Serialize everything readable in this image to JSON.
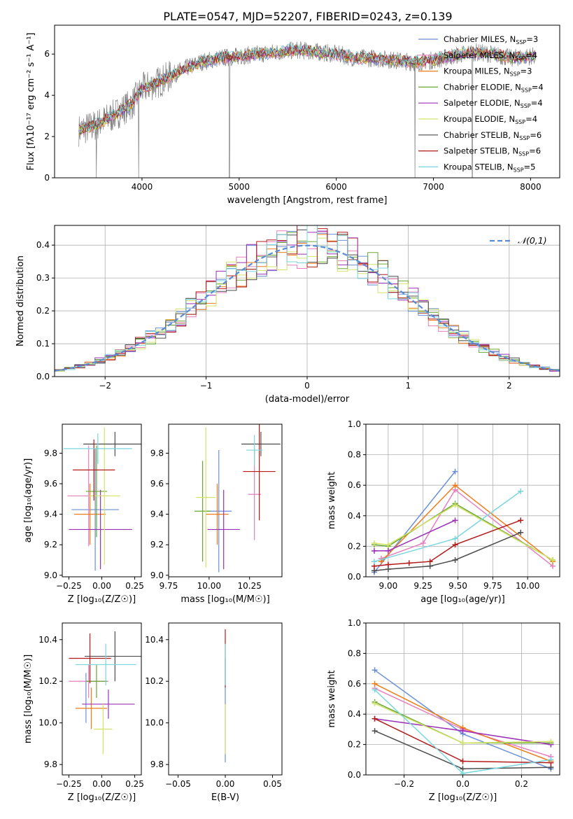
{
  "figure_title": "PLATE=0547, MJD=52207, FIBERID=0243, z=0.139",
  "colors": {
    "Chabrier MILES": "#6a8fd8",
    "Salpeter MILES": "#e87fbf",
    "Kroupa MILES": "#ef7d1a",
    "Chabrier ELODIE": "#6aa832",
    "Salpeter ELODIE": "#9b30b8",
    "Kroupa ELODIE": "#d4e36a",
    "Chabrier STELIB": "#4d4d4d",
    "Salpeter STELIB": "#b31b1b",
    "Kroupa STELIB": "#7ad6dd",
    "gaussian": "#5b8bd6"
  },
  "chart_data": [
    {
      "id": "spectrum",
      "type": "line",
      "title": "PLATE=0547, MJD=52207, FIBERID=0243, z=0.139",
      "xlabel": "wavelength [Angstrom, rest frame]",
      "ylabel": "Flux [fλ10⁻¹⁷ erg cm⁻² s⁻¹ A⁻¹]",
      "xlim": [
        3100,
        8300
      ],
      "ylim": [
        0,
        7.4
      ],
      "xticks": [
        "4000",
        "5000",
        "6000",
        "7000",
        "8000"
      ],
      "yticks": [
        "0",
        "2",
        "4",
        "6"
      ],
      "legend_position": "right",
      "legend": [
        {
          "label": "Chabrier MILES, N",
          "sub": "SSP",
          "suffix": "=3"
        },
        {
          "label": "Salpeter MILES, N",
          "sub": "SSP",
          "suffix": "=4"
        },
        {
          "label": "Kroupa MILES, N",
          "sub": "SSP",
          "suffix": "=3"
        },
        {
          "label": "Chabrier ELODIE, N",
          "sub": "SSP",
          "suffix": "=4"
        },
        {
          "label": "Salpeter ELODIE, N",
          "sub": "SSP",
          "suffix": "=4"
        },
        {
          "label": "Kroupa ELODIE, N",
          "sub": "SSP",
          "suffix": "=4"
        },
        {
          "label": "Chabrier STELIB, N",
          "sub": "SSP",
          "suffix": "=6"
        },
        {
          "label": "Salpeter STELIB, N",
          "sub": "SSP",
          "suffix": "=6"
        },
        {
          "label": "Kroupa STELIB, N",
          "sub": "SSP",
          "suffix": "=5"
        }
      ],
      "x": [
        3350,
        3500,
        3700,
        3900,
        4000,
        4200,
        4400,
        4600,
        4800,
        5000,
        5200,
        5400,
        5600,
        5800,
        6000,
        6200,
        6400,
        6600,
        6800,
        7000,
        7200,
        7400,
        7600,
        7800,
        8000
      ],
      "model_y": [
        2.3,
        2.5,
        3.0,
        3.6,
        4.3,
        4.7,
        5.2,
        5.6,
        5.8,
        5.9,
        6.0,
        6.1,
        6.2,
        6.1,
        6.0,
        5.8,
        5.8,
        5.7,
        5.6,
        5.7,
        5.9,
        6.1,
        6.0,
        5.8,
        5.9
      ],
      "dips": [
        [
          3530,
          0
        ],
        [
          3965,
          0
        ],
        [
          4900,
          0
        ],
        [
          6810,
          0
        ],
        [
          7400,
          0
        ]
      ]
    },
    {
      "id": "residual-histogram",
      "type": "area",
      "xlabel": "(data-model)/error",
      "ylabel": "Normed distribution",
      "xlim": [
        -2.5,
        2.5
      ],
      "ylim": [
        0,
        0.46
      ],
      "xticks": [
        "−2",
        "−1",
        "0",
        "1",
        "2"
      ],
      "yticks": [
        "0.0",
        "0.1",
        "0.2",
        "0.3",
        "0.4"
      ],
      "grid": true,
      "legend_position": "top-right",
      "gaussian_label": "𝒩(0,1)",
      "bin_width": 0.1
    },
    {
      "id": "age-vs-Z",
      "type": "scatter",
      "xlabel": "Z [log₁₀(Z/Z☉)]",
      "ylabel": "age  [log₁₀(age/yr)]",
      "xlim": [
        -0.3,
        0.3
      ],
      "ylim": [
        8.99,
        9.99
      ],
      "xticks": [
        "−0.25",
        "0.00",
        "0.25"
      ],
      "yticks": [
        "9.0",
        "9.2",
        "9.4",
        "9.6",
        "9.8"
      ],
      "points": [
        {
          "model": "Chabrier MILES",
          "x": -0.05,
          "xerr": 0.18,
          "y": 9.43,
          "yerr": 0.4
        },
        {
          "model": "Salpeter MILES",
          "x": -0.1,
          "xerr": 0.16,
          "y": 9.52,
          "yerr": 0.33
        },
        {
          "model": "Kroupa MILES",
          "x": -0.09,
          "xerr": 0.12,
          "y": 9.4,
          "yerr": 0.2
        },
        {
          "model": "Chabrier ELODIE",
          "x": -0.04,
          "xerr": 0.08,
          "y": 9.55,
          "yerr": 0.3
        },
        {
          "model": "Salpeter ELODIE",
          "x": -0.01,
          "xerr": 0.24,
          "y": 9.3,
          "yerr": 0.26
        },
        {
          "model": "Kroupa ELODIE",
          "x": 0.02,
          "xerr": 0.12,
          "y": 9.52,
          "yerr": 0.45
        },
        {
          "model": "Chabrier STELIB",
          "x": 0.1,
          "xerr": 0.24,
          "y": 9.86,
          "yerr": 0.08
        },
        {
          "model": "Salpeter STELIB",
          "x": -0.06,
          "xerr": 0.16,
          "y": 9.69,
          "yerr": 0.2
        },
        {
          "model": "Kroupa STELIB",
          "x": -0.03,
          "xerr": 0.26,
          "y": 9.83,
          "yerr": 0.1
        }
      ]
    },
    {
      "id": "age-vs-mass",
      "type": "scatter",
      "xlabel": "mass [log₁₀(M/M☉)]",
      "xlim": [
        9.75,
        10.45
      ],
      "ylim": [
        8.99,
        9.99
      ],
      "xticks": [
        "9.75",
        "10.00",
        "10.25"
      ],
      "yticks": [
        "9.0",
        "9.2",
        "9.4",
        "9.6",
        "9.8"
      ],
      "points": [
        {
          "model": "Chabrier MILES",
          "x": 10.06,
          "xerr": 0.08,
          "y": 9.42,
          "yerr": 0.4
        },
        {
          "model": "Salpeter MILES",
          "x": 10.28,
          "xerr": 0.04,
          "y": 9.53,
          "yerr": 0.3
        },
        {
          "model": "Kroupa MILES",
          "x": 10.05,
          "xerr": 0.07,
          "y": 9.4,
          "yerr": 0.2
        },
        {
          "model": "Chabrier ELODIE",
          "x": 9.96,
          "xerr": 0.05,
          "y": 9.42,
          "yerr": 0.33
        },
        {
          "model": "Salpeter ELODIE",
          "x": 10.09,
          "xerr": 0.1,
          "y": 9.3,
          "yerr": 0.26
        },
        {
          "model": "Kroupa ELODIE",
          "x": 9.98,
          "xerr": 0.06,
          "y": 9.51,
          "yerr": 0.46
        },
        {
          "model": "Chabrier STELIB",
          "x": 10.32,
          "xerr": 0.12,
          "y": 9.86,
          "yerr": 0.08
        },
        {
          "model": "Salpeter STELIB",
          "x": 10.31,
          "xerr": 0.1,
          "y": 9.68,
          "yerr": 0.32
        },
        {
          "model": "Kroupa STELIB",
          "x": 10.28,
          "xerr": 0.05,
          "y": 9.82,
          "yerr": 0.1
        }
      ]
    },
    {
      "id": "mass-weight-vs-age",
      "type": "line",
      "xlabel": "age  [log₁₀(age/yr)]",
      "ylabel": "mass weight",
      "xlim": [
        8.84,
        10.23
      ],
      "ylim": [
        0,
        1
      ],
      "xticks": [
        "9.00",
        "9.25",
        "9.50",
        "9.75",
        "10.00"
      ],
      "yticks": [
        "0.0",
        "0.2",
        "0.4",
        "0.6",
        "0.8",
        "1.0"
      ],
      "grid": true,
      "series": [
        {
          "name": "Chabrier MILES",
          "x": [
            8.9,
            9.48
          ],
          "y": [
            0.03,
            0.69
          ]
        },
        {
          "name": "Salpeter MILES",
          "x": [
            8.95,
            9.25,
            9.48,
            10.18
          ],
          "y": [
            0.12,
            0.22,
            0.57,
            0.07
          ]
        },
        {
          "name": "Kroupa MILES",
          "x": [
            8.95,
            9.48,
            10.18
          ],
          "y": [
            0.1,
            0.6,
            0.1
          ]
        },
        {
          "name": "Chabrier ELODIE",
          "x": [
            8.9,
            9.0,
            9.48,
            10.18
          ],
          "y": [
            0.21,
            0.2,
            0.48,
            0.11
          ]
        },
        {
          "name": "Salpeter ELODIE",
          "x": [
            8.9,
            9.0,
            9.48
          ],
          "y": [
            0.17,
            0.17,
            0.37
          ]
        },
        {
          "name": "Kroupa ELODIE",
          "x": [
            8.9,
            9.0,
            9.48,
            10.18
          ],
          "y": [
            0.22,
            0.21,
            0.47,
            0.11
          ]
        },
        {
          "name": "Chabrier STELIB",
          "x": [
            8.9,
            9.0,
            9.3,
            9.48,
            9.95
          ],
          "y": [
            0.04,
            0.05,
            0.07,
            0.11,
            0.29
          ]
        },
        {
          "name": "Salpeter STELIB",
          "x": [
            8.9,
            9.0,
            9.15,
            9.3,
            9.48,
            9.95
          ],
          "y": [
            0.07,
            0.08,
            0.09,
            0.1,
            0.21,
            0.37
          ]
        },
        {
          "name": "Kroupa STELIB",
          "x": [
            8.9,
            9.48,
            9.95
          ],
          "y": [
            0.1,
            0.25,
            0.56
          ]
        }
      ]
    },
    {
      "id": "mass-vs-Z",
      "type": "scatter",
      "xlabel": "Z [log₁₀(Z/Z☉)]",
      "ylabel": "mass [log₁₀(M/M☉)]",
      "xlim": [
        -0.3,
        0.3
      ],
      "ylim": [
        9.75,
        10.48
      ],
      "xticks": [
        "−0.25",
        "0.00",
        "0.25"
      ],
      "yticks": [
        "9.8",
        "10.0",
        "10.2",
        "10.4"
      ],
      "points": [
        {
          "model": "Chabrier MILES",
          "x": -0.12,
          "xerr": 0.0,
          "y": 10.12,
          "yerr": 0.12
        },
        {
          "model": "Salpeter MILES",
          "x": -0.1,
          "xerr": 0.15,
          "y": 10.2,
          "yerr": 0.08
        },
        {
          "model": "Kroupa MILES",
          "x": -0.08,
          "xerr": 0.12,
          "y": 10.07,
          "yerr": 0.1
        },
        {
          "model": "Chabrier ELODIE",
          "x": -0.04,
          "xerr": 0.08,
          "y": 10.2,
          "yerr": 0.08
        },
        {
          "model": "Salpeter ELODIE",
          "x": 0.05,
          "xerr": 0.2,
          "y": 10.09,
          "yerr": 0.07
        },
        {
          "model": "Kroupa ELODIE",
          "x": 0.01,
          "xerr": 0.07,
          "y": 9.97,
          "yerr": 0.12
        },
        {
          "model": "Chabrier STELIB",
          "x": 0.1,
          "xerr": 0.23,
          "y": 10.32,
          "yerr": 0.12
        },
        {
          "model": "Salpeter STELIB",
          "x": -0.09,
          "xerr": 0.16,
          "y": 10.31,
          "yerr": 0.12
        },
        {
          "model": "Kroupa STELIB",
          "x": 0.03,
          "xerr": 0.23,
          "y": 10.28,
          "yerr": 0.1
        }
      ]
    },
    {
      "id": "mass-vs-EBV",
      "type": "scatter",
      "xlabel": "E(B-V)",
      "xlim": [
        -0.06,
        0.06
      ],
      "ylim": [
        9.75,
        10.48
      ],
      "xticks": [
        "−0.05",
        "0.00",
        "0.05"
      ],
      "yticks": [
        "9.8",
        "10.0",
        "10.2",
        "10.4"
      ],
      "points": [
        {
          "model": "Chabrier MILES",
          "x": 0,
          "y": 10.06,
          "yerr": 0.25
        },
        {
          "model": "Salpeter STELIB",
          "x": 0,
          "y": 10.31,
          "yerr": 0.14
        },
        {
          "model": "Kroupa ELODIE",
          "x": 0,
          "y": 9.97,
          "yerr": 0.12
        },
        {
          "model": "Kroupa STELIB",
          "x": 0,
          "y": 10.28,
          "yerr": 0.1
        }
      ]
    },
    {
      "id": "mass-weight-vs-Z",
      "type": "line",
      "xlabel": "Z [log₁₀(Z/Z☉)]",
      "ylabel": "mass weight",
      "xlim": [
        -0.33,
        0.33
      ],
      "ylim": [
        0,
        1
      ],
      "xticks": [
        "−0.2",
        "0.0",
        "0.2"
      ],
      "yticks": [
        "0.0",
        "0.2",
        "0.4",
        "0.6",
        "0.8",
        "1.0"
      ],
      "grid": true,
      "series": [
        {
          "name": "Chabrier MILES",
          "x": [
            -0.3,
            0.0,
            0.3
          ],
          "y": [
            0.69,
            0.27,
            0.04
          ]
        },
        {
          "name": "Salpeter MILES",
          "x": [
            -0.3,
            0.0,
            0.3
          ],
          "y": [
            0.57,
            0.3,
            0.12
          ]
        },
        {
          "name": "Kroupa MILES",
          "x": [
            -0.3,
            0.0,
            0.3
          ],
          "y": [
            0.6,
            0.31,
            0.09
          ]
        },
        {
          "name": "Chabrier ELODIE",
          "x": [
            -0.3,
            0.0,
            0.3
          ],
          "y": [
            0.48,
            0.21,
            0.21
          ]
        },
        {
          "name": "Salpeter ELODIE",
          "x": [
            -0.3,
            0.0,
            0.3
          ],
          "y": [
            0.37,
            0.29,
            0.2
          ]
        },
        {
          "name": "Kroupa ELODIE",
          "x": [
            -0.3,
            0.0,
            0.3
          ],
          "y": [
            0.47,
            0.21,
            0.22
          ]
        },
        {
          "name": "Chabrier STELIB",
          "x": [
            -0.3,
            0.0,
            0.3
          ],
          "y": [
            0.29,
            0.04,
            0.05
          ]
        },
        {
          "name": "Salpeter STELIB",
          "x": [
            -0.3,
            0.0,
            0.3
          ],
          "y": [
            0.37,
            0.09,
            0.08
          ]
        },
        {
          "name": "Kroupa STELIB",
          "x": [
            -0.3,
            0.0,
            0.3
          ],
          "y": [
            0.56,
            0.01,
            0.1
          ]
        }
      ]
    }
  ]
}
